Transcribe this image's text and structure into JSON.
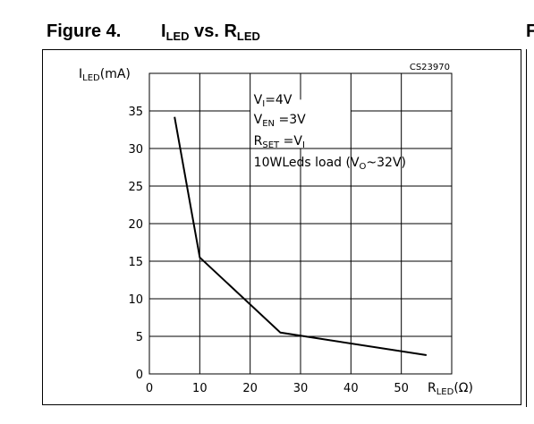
{
  "figure": {
    "number": "Figure 4.",
    "title_main": "I",
    "title_sub1": "LED",
    "title_mid": " vs. R",
    "title_sub2": "LED",
    "edge_letter": "F"
  },
  "chart_data": {
    "type": "line",
    "code": "CS23970",
    "ylabel": {
      "main": "I",
      "sub": "LED",
      "unit": "(mA)"
    },
    "xlabel": {
      "main": "R",
      "sub": "LED",
      "unit": "(Ω)"
    },
    "xlim": [
      0,
      60
    ],
    "ylim": [
      0,
      40
    ],
    "xticks": [
      0,
      10,
      20,
      30,
      40,
      50
    ],
    "yticks": [
      0,
      5,
      10,
      15,
      20,
      25,
      30,
      35
    ],
    "series": [
      {
        "x": [
          5,
          10,
          26,
          55
        ],
        "y": [
          34.2,
          15.5,
          5.5,
          2.5
        ]
      }
    ],
    "annotations": [
      {
        "main": "V",
        "sub": "I",
        "rest": "=4V"
      },
      {
        "main": "V",
        "sub": "EN",
        "rest": " =3V"
      },
      {
        "main": "R",
        "sub": "SET",
        "rest": " =V",
        "sub2": "I"
      },
      {
        "main": "10WLeds  load  (V",
        "sub": "O",
        "rest": "~32V)"
      }
    ],
    "grid": true,
    "line_color": "#000000"
  }
}
